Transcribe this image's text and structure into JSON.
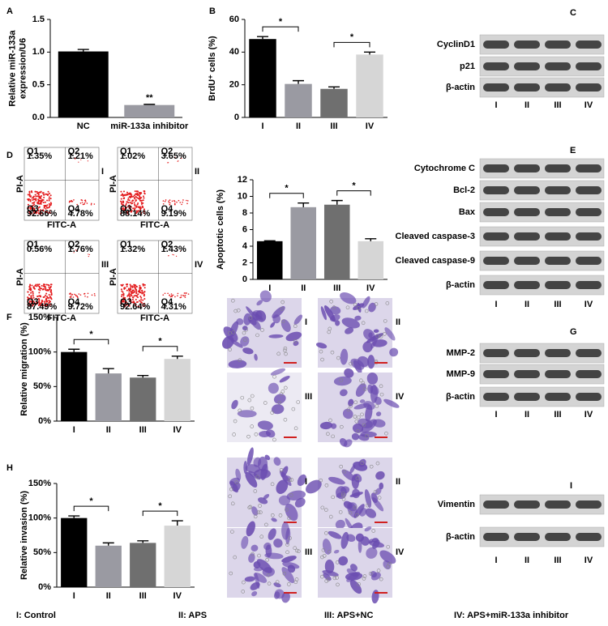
{
  "chart_data": [
    {
      "type": "bar",
      "panel": "A",
      "y_label": [
        "Relative miR-133a",
        "expression/U6"
      ],
      "categories": [
        "NC",
        "miR-133a inhibitor"
      ],
      "values": [
        1.01,
        0.19
      ],
      "errors": [
        0.03,
        0.01
      ],
      "colors": [
        "#000000",
        "#9a9aa2"
      ],
      "ylim": [
        0,
        1.5
      ],
      "yticks": [
        {
          "value": 0,
          "label": "0.0"
        },
        {
          "value": 0.5,
          "label": "0.5"
        },
        {
          "value": 1,
          "label": "1.0"
        },
        {
          "value": 1.5,
          "label": "1.5"
        }
      ],
      "annotations": [
        "**"
      ]
    },
    {
      "type": "bar",
      "panel": "B",
      "y_label": [
        "BrdU⁺ cells (%)"
      ],
      "categories": [
        "I",
        "II",
        "III",
        "IV"
      ],
      "values": [
        48,
        20.5,
        17.5,
        38.5
      ],
      "errors": [
        1.5,
        2,
        1.2,
        1.5
      ],
      "colors": [
        "#000000",
        "#9a9aa2",
        "#6f6f6f",
        "#d6d6d6"
      ],
      "ylim": [
        0,
        60
      ],
      "yticks": [
        0,
        20,
        40,
        60
      ],
      "annotations": [
        "*",
        "*"
      ]
    },
    {
      "type": "bar",
      "panel": "",
      "y_label": [
        "Apoptotic cells (%)"
      ],
      "categories": [
        "I",
        "II",
        "III",
        "IV"
      ],
      "values": [
        4.6,
        8.7,
        9.0,
        4.6
      ],
      "errors": [
        0.05,
        0.5,
        0.5,
        0.3
      ],
      "colors": [
        "#000000",
        "#9a9aa2",
        "#6f6f6f",
        "#d6d6d6"
      ],
      "ylim": [
        0,
        12
      ],
      "yticks": [
        0,
        2,
        4,
        6,
        8,
        10,
        12
      ],
      "annotations": [
        "*",
        "*"
      ]
    },
    {
      "type": "bar",
      "panel": "F",
      "y_label": [
        "Relative migration (%)"
      ],
      "categories": [
        "I",
        "II",
        "III",
        "IV"
      ],
      "values": [
        100,
        69,
        63,
        90
      ],
      "errors": [
        4,
        7,
        3,
        4
      ],
      "colors": [
        "#000000",
        "#9a9aa2",
        "#6f6f6f",
        "#d6d6d6"
      ],
      "ylim": [
        0,
        150
      ],
      "yticks": [
        {
          "value": 0,
          "label": "0%"
        },
        {
          "value": 50,
          "label": "50%"
        },
        {
          "value": 100,
          "label": "100%"
        },
        {
          "value": 150,
          "label": "150%"
        }
      ],
      "annotations": [
        "*",
        "*"
      ]
    },
    {
      "type": "bar",
      "panel": "H",
      "y_label": [
        "Relative invasion (%)"
      ],
      "categories": [
        "I",
        "II",
        "III",
        "IV"
      ],
      "values": [
        100,
        60,
        64,
        89
      ],
      "errors": [
        3,
        4,
        3,
        7
      ],
      "colors": [
        "#000000",
        "#9a9aa2",
        "#6f6f6f",
        "#d6d6d6"
      ],
      "ylim": [
        0,
        150
      ],
      "yticks": [
        {
          "value": 0,
          "label": "0%"
        },
        {
          "value": 50,
          "label": "50%"
        },
        {
          "value": 100,
          "label": "100%"
        },
        {
          "value": 150,
          "label": "150%"
        }
      ],
      "annotations": [
        "*",
        "*"
      ]
    }
  ],
  "flow_cytometry": {
    "panel": "D",
    "x_label": "FITC-A",
    "y_label": "PI-A",
    "quadrants": [
      "Q1",
      "Q2",
      "Q3",
      "Q4"
    ],
    "plots": [
      {
        "label": "I",
        "values": [
          "1.35%",
          "1.21%",
          "92.66%",
          "4.78%"
        ]
      },
      {
        "label": "II",
        "values": [
          "1.02%",
          "3.65%",
          "88.14%",
          "9.19%"
        ]
      },
      {
        "label": "III",
        "values": [
          "0.56%",
          "1.76%",
          "87.49%",
          "9.72%"
        ]
      },
      {
        "label": "IV",
        "values": [
          "1.32%",
          "1.43%",
          "92.64%",
          "4.31%"
        ]
      }
    ]
  },
  "blots": [
    {
      "panel": "C",
      "rows": [
        "CyclinD1",
        "p21",
        "β-actin"
      ],
      "lanes": [
        "I",
        "II",
        "III",
        "IV"
      ]
    },
    {
      "panel": "E",
      "rows": [
        "Cytochrome C",
        "Bcl-2",
        "Bax",
        "Cleaved caspase-3",
        "Cleaved caspase-9",
        "β-actin"
      ],
      "lanes": [
        "I",
        "II",
        "III",
        "IV"
      ]
    },
    {
      "panel": "G",
      "rows": [
        "MMP-2",
        "MMP-9",
        "β-actin"
      ],
      "lanes": [
        "I",
        "II",
        "III",
        "IV"
      ]
    },
    {
      "panel": "I",
      "rows": [
        "Vimentin",
        "β-actin"
      ],
      "lanes": [
        "I",
        "II",
        "III",
        "IV"
      ]
    }
  ],
  "micrographs": [
    {
      "labels": [
        "I",
        "II",
        "III",
        "IV"
      ]
    },
    {
      "labels": [
        "I",
        "II",
        "III",
        "IV"
      ]
    }
  ],
  "legend": [
    "I: Control",
    "II: APS",
    "III: APS+NC",
    "IV: APS+miR-133a inhibitor"
  ]
}
